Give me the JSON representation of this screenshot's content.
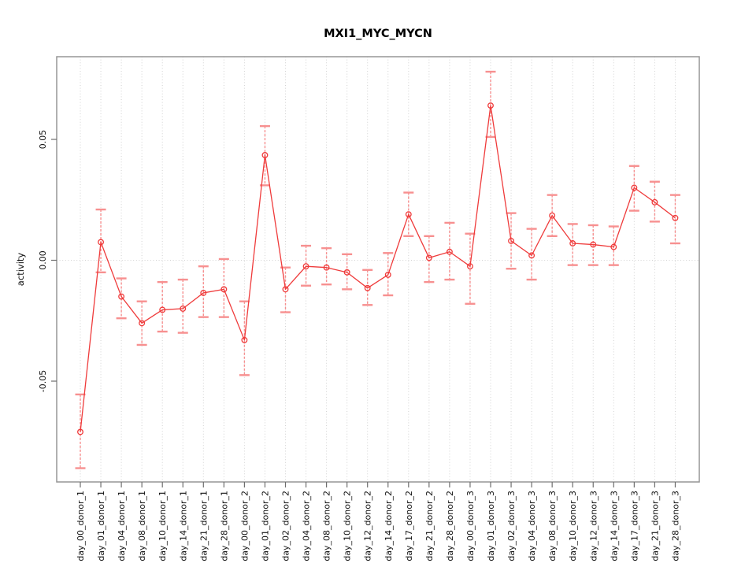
{
  "title": "MXI1_MYC_MYCN",
  "chart_data": {
    "type": "line",
    "title": "MXI1_MYC_MYCN",
    "xlabel": "",
    "ylabel": "activity",
    "legend_position": "none",
    "grid": "dotted vertical gridline at every x category; dotted horizontal gridline at y=0",
    "marker": "open-circle",
    "error_bars": true,
    "ylim": [
      -0.092,
      0.0845
    ],
    "yticks": [
      -0.05,
      0.0,
      0.05
    ],
    "ytick_labels": [
      "-0.05",
      "0.00",
      "0.05"
    ],
    "categories": [
      "day_00_donor_1",
      "day_01_donor_1",
      "day_04_donor_1",
      "day_08_donor_1",
      "day_10_donor_1",
      "day_14_donor_1",
      "day_21_donor_1",
      "day_28_donor_1",
      "day_00_donor_2",
      "day_01_donor_2",
      "day_02_donor_2",
      "day_04_donor_2",
      "day_08_donor_2",
      "day_10_donor_2",
      "day_12_donor_2",
      "day_14_donor_2",
      "day_17_donor_2",
      "day_21_donor_2",
      "day_28_donor_2",
      "day_00_donor_3",
      "day_01_donor_3",
      "day_02_donor_3",
      "day_04_donor_3",
      "day_08_donor_3",
      "day_10_donor_3",
      "day_12_donor_3",
      "day_14_donor_3",
      "day_17_donor_3",
      "day_21_donor_3",
      "day_28_donor_3"
    ],
    "series": [
      {
        "name": "activity",
        "values": [
          -0.071,
          0.0075,
          -0.015,
          -0.026,
          -0.0205,
          -0.02,
          -0.0135,
          -0.012,
          -0.033,
          0.0435,
          -0.012,
          -0.0025,
          -0.003,
          -0.005,
          -0.0115,
          -0.006,
          0.019,
          0.001,
          0.0035,
          -0.0025,
          0.064,
          0.008,
          0.002,
          0.0185,
          0.007,
          0.0065,
          0.0055,
          0.03,
          0.024,
          0.0175
        ],
        "ci_high": [
          -0.0555,
          0.021,
          -0.0075,
          -0.017,
          -0.009,
          -0.008,
          -0.0025,
          0.0005,
          -0.017,
          0.0555,
          -0.003,
          0.006,
          0.005,
          0.0025,
          -0.004,
          0.003,
          0.028,
          0.01,
          0.0155,
          0.011,
          0.078,
          0.0195,
          0.013,
          0.027,
          0.015,
          0.0145,
          0.014,
          0.039,
          0.0325,
          0.027
        ],
        "ci_low": [
          -0.086,
          -0.005,
          -0.024,
          -0.035,
          -0.0295,
          -0.03,
          -0.0235,
          -0.0235,
          -0.0475,
          0.031,
          -0.0215,
          -0.0105,
          -0.01,
          -0.012,
          -0.0185,
          -0.0145,
          0.01,
          -0.009,
          -0.008,
          -0.018,
          0.051,
          -0.0035,
          -0.008,
          0.01,
          -0.002,
          -0.002,
          -0.002,
          0.0205,
          0.016,
          0.007
        ]
      }
    ],
    "colors": {
      "line": "#ef3b3b",
      "marker": "#ef3b3b",
      "error_bar": "#f79090",
      "grid": "#d2d2d2",
      "box": "#969696",
      "tick": "#6e6e6e",
      "text": "#111111"
    }
  }
}
